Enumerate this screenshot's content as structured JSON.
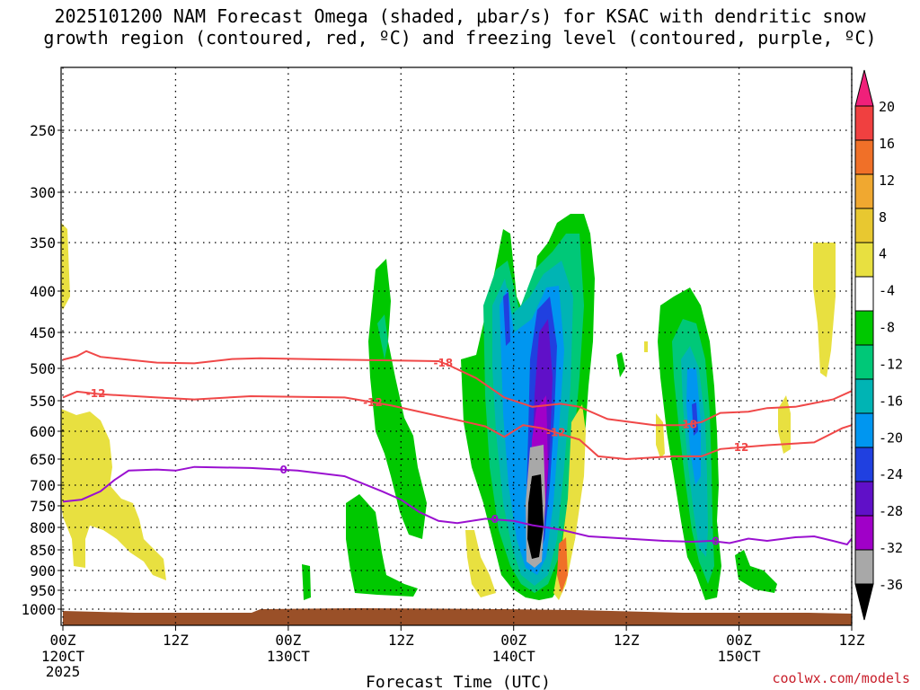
{
  "chart_data": {
    "type": "heatmap",
    "title_line1": "2025101200 NAM Forecast Omega (shaded, μbar/s) for KSAC with dendritic snow",
    "title_line2": "growth region (contoured, red, ºC) and freezing level (contoured, purple, ºC)",
    "xlabel": "Forecast Time (UTC)",
    "ylabel": "",
    "credit": "coolwx.com/models",
    "x_range_hours": [
      0,
      84
    ],
    "x_ticks": [
      {
        "hour": 0,
        "label": "00Z",
        "date": "120CT",
        "year": "2025"
      },
      {
        "hour": 12,
        "label": "12Z",
        "date": "",
        "year": ""
      },
      {
        "hour": 24,
        "label": "00Z",
        "date": "130CT",
        "year": ""
      },
      {
        "hour": 36,
        "label": "12Z",
        "date": "",
        "year": ""
      },
      {
        "hour": 48,
        "label": "00Z",
        "date": "140CT",
        "year": ""
      },
      {
        "hour": 60,
        "label": "12Z",
        "date": "",
        "year": ""
      },
      {
        "hour": 72,
        "label": "00Z",
        "date": "150CT",
        "year": ""
      },
      {
        "hour": 84,
        "label": "12Z",
        "date": "",
        "year": ""
      }
    ],
    "y_ticks_hPa": [
      250,
      300,
      350,
      400,
      450,
      500,
      550,
      600,
      650,
      700,
      750,
      800,
      850,
      900,
      950,
      1000
    ],
    "colorbar": {
      "labels": [
        "20",
        "16",
        "12",
        "8",
        "4",
        "-4",
        "-8",
        "-12",
        "-16",
        "-20",
        "-24",
        "-28",
        "-32",
        "-36"
      ],
      "colors": [
        "#f0207a",
        "#f04040",
        "#f07028",
        "#f0a830",
        "#e8c830",
        "#e8e040",
        "#ffffff",
        "#00c800",
        "#00c878",
        "#00b4b4",
        "#0096f0",
        "#2040e0",
        "#6010c8",
        "#a000c8",
        "#a8a8a8",
        "#000000"
      ]
    },
    "contour_labels": {
      "dgz_minus18": "-18",
      "dgz_minus12": "-12",
      "freezing": "0"
    },
    "series": [
      {
        "name": "-18C isotherm (hPa)",
        "color": "#f04848",
        "x": [
          0,
          1.5,
          2.5,
          4,
          10,
          14,
          18,
          21,
          30,
          40,
          41,
          44,
          47,
          50,
          53,
          55,
          58,
          63,
          66,
          68,
          70,
          73,
          75,
          78,
          82,
          84
        ],
        "y": [
          488,
          483,
          476,
          484,
          492,
          493,
          487,
          486,
          488,
          490,
          495,
          515,
          545,
          560,
          555,
          560,
          580,
          590,
          590,
          585,
          570,
          568,
          562,
          560,
          548,
          535
        ]
      },
      {
        "name": "-12C isotherm (hPa)",
        "color": "#f04848",
        "x": [
          0,
          1.5,
          4,
          10,
          14,
          20,
          30,
          35,
          40,
          43,
          45,
          47,
          49,
          51,
          53,
          55,
          57,
          60,
          65,
          68,
          70,
          75,
          80,
          83,
          84
        ],
        "y": [
          545,
          536,
          540,
          545,
          548,
          543,
          545,
          558,
          575,
          585,
          592,
          610,
          590,
          595,
          605,
          615,
          645,
          650,
          645,
          645,
          632,
          625,
          620,
          595,
          590
        ]
      },
      {
        "name": "0C freezing level (hPa)",
        "color": "#9a10d0",
        "x": [
          0,
          2,
          4,
          5.5,
          7,
          10,
          12,
          14,
          20,
          25,
          30,
          34,
          36,
          38,
          40,
          42,
          45,
          48,
          50,
          53,
          56,
          60,
          64,
          67,
          69,
          71,
          73,
          75,
          78,
          80,
          82,
          83.5,
          84
        ],
        "y": [
          740,
          735,
          715,
          690,
          672,
          670,
          672,
          665,
          667,
          672,
          683,
          715,
          735,
          765,
          785,
          790,
          780,
          785,
          795,
          805,
          820,
          825,
          830,
          832,
          830,
          835,
          825,
          830,
          822,
          820,
          830,
          838,
          825
        ]
      }
    ],
    "regions": [
      {
        "name": "Upward motion band",
        "hours": [
          48,
          52
        ],
        "pressure_hPa": [
          340,
          980
        ],
        "min_omega": -36
      },
      {
        "name": "Upward motion band",
        "hours": [
          66,
          70
        ],
        "pressure_hPa": [
          400,
          960
        ],
        "min_omega": -20
      }
    ]
  }
}
